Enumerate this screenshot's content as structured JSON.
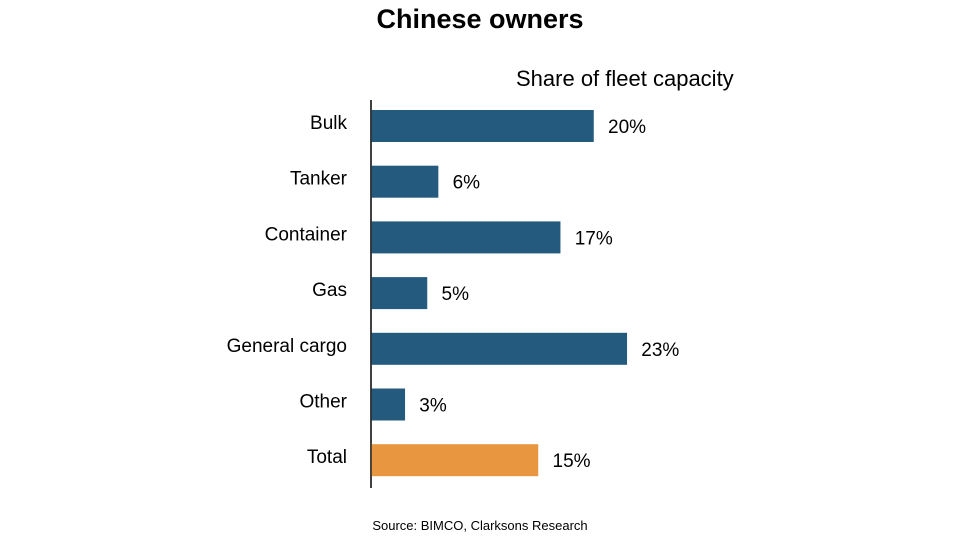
{
  "chart_data": {
    "type": "bar",
    "orientation": "horizontal",
    "title": "Chinese owners",
    "subtitle": "Share of fleet capacity",
    "categories": [
      "Bulk",
      "Tanker",
      "Container",
      "Gas",
      "General cargo",
      "Other",
      "Total"
    ],
    "values": [
      20,
      6,
      17,
      5,
      23,
      3,
      15
    ],
    "value_labels": [
      "20%",
      "6%",
      "17%",
      "5%",
      "23%",
      "3%",
      "15%"
    ],
    "unit": "%",
    "colors": {
      "default": "#245a7e",
      "highlight": "#e8963f"
    },
    "highlight_category": "Total",
    "grid": false
  },
  "source": "Source: BIMCO, Clarksons Research"
}
